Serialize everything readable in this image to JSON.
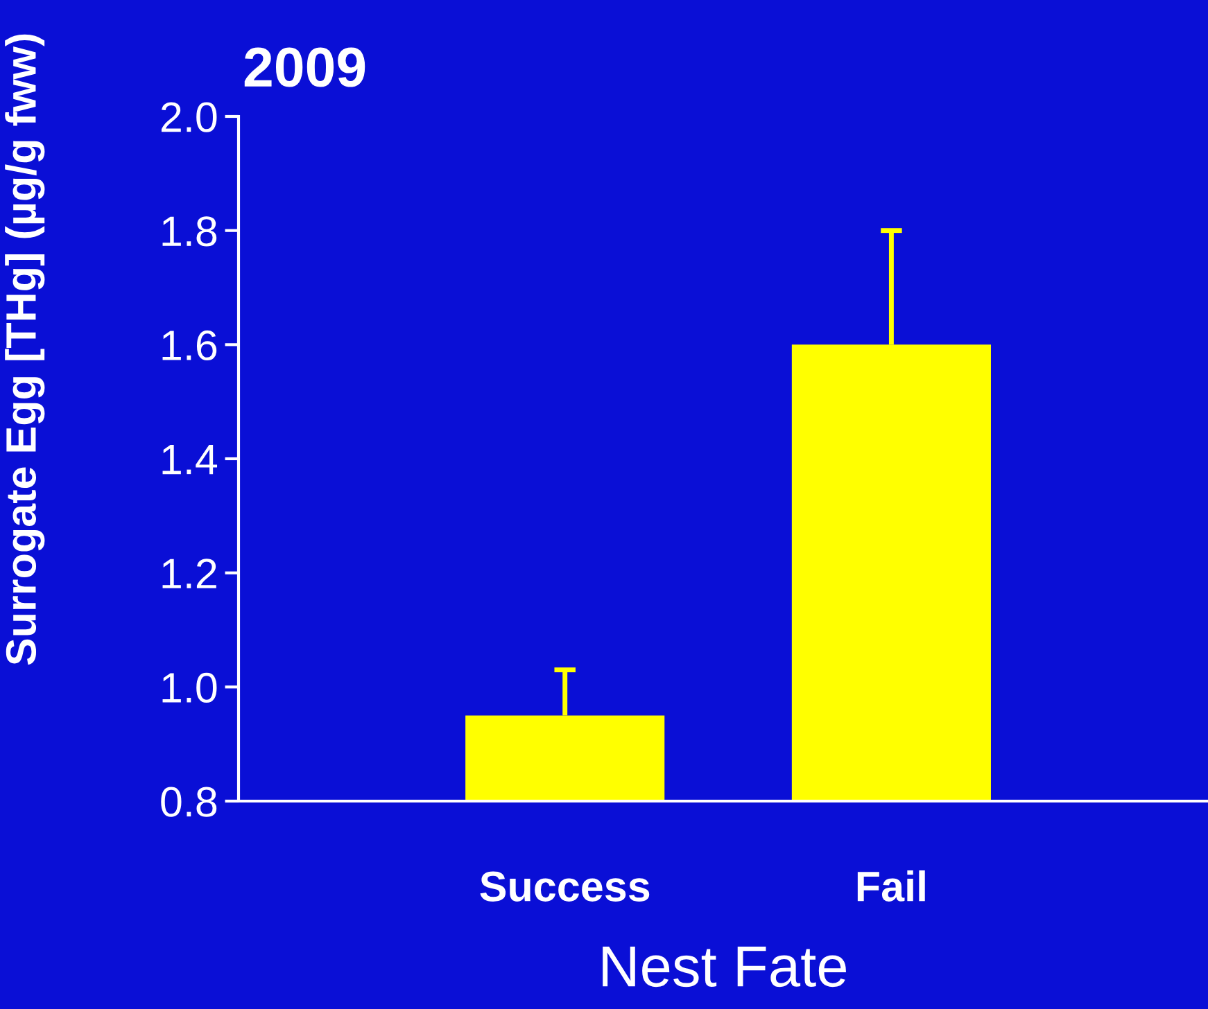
{
  "chart_data": {
    "type": "bar",
    "title": "2009",
    "xlabel": "Nest Fate",
    "ylabel": "Surrogate Egg [THg] (µg/g fww)",
    "categories": [
      "Success",
      "Fail"
    ],
    "values": [
      0.95,
      1.6
    ],
    "errors": [
      [
        0.95,
        1.03
      ],
      [
        1.6,
        1.8
      ]
    ],
    "color": "#ffff00",
    "ylim": [
      0.8,
      2.0
    ],
    "yticks": [
      0.8,
      {
        "value": 1.0,
        "label": "1.0"
      },
      1.2,
      1.4,
      1.6,
      1.8,
      {
        "value": 2.0,
        "label": "2.0"
      }
    ]
  }
}
